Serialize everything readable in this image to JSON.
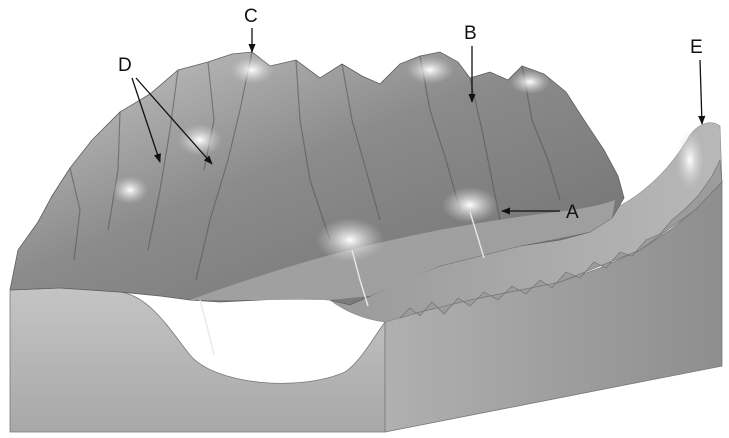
{
  "labels": {
    "a": "A",
    "b": "B",
    "c": "C",
    "d": "D",
    "e": "E"
  },
  "colors": {
    "block_side": "#b3b3b3",
    "block_right_side": "#a2a2a2",
    "terrain_base": "#8f8f8f",
    "valley_floor": "#a9a9a9",
    "snow": "#f2f2f2",
    "label_ink": "#111111"
  }
}
